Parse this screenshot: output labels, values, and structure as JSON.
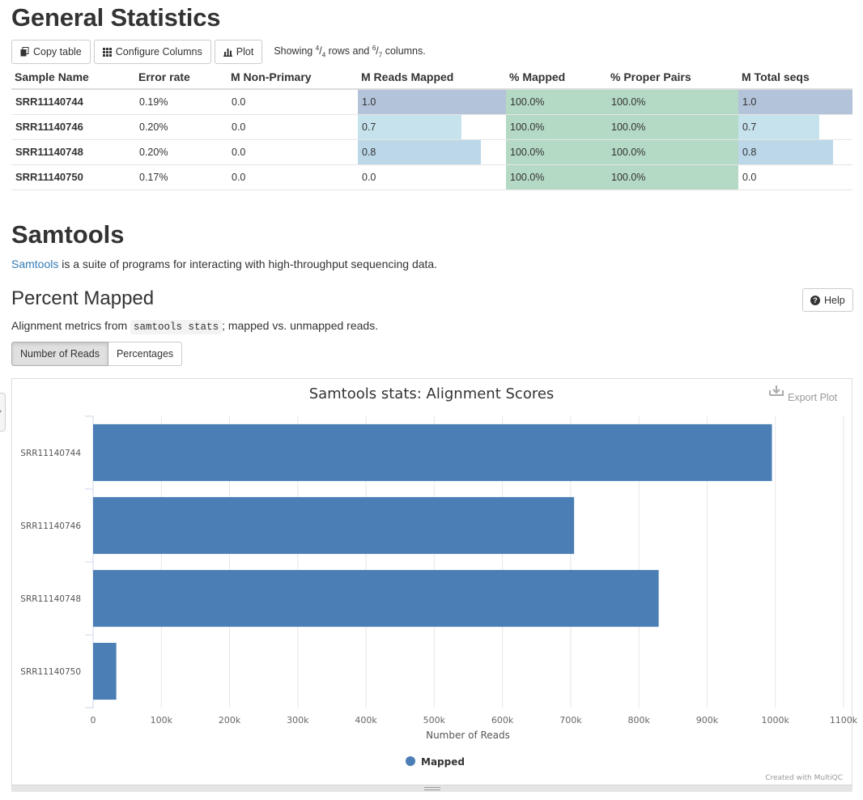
{
  "general_stats": {
    "title": "General Statistics",
    "buttons": {
      "copy": "Copy table",
      "configure": "Configure Columns",
      "plot": "Plot"
    },
    "showing": {
      "prefix": "Showing",
      "rows_num": "4",
      "rows_den": "4",
      "mid": "rows and",
      "cols_num": "6",
      "cols_den": "7",
      "suffix": "columns."
    },
    "columns": [
      "Sample Name",
      "Error rate",
      "M Non-Primary",
      "M Reads Mapped",
      "% Mapped",
      "% Proper Pairs",
      "M Total seqs"
    ],
    "rows": [
      {
        "name": "SRR11140744",
        "error": "0.19%",
        "nonprimary": "0.0",
        "mapped": "1.0",
        "mapped_frac": 1.0,
        "pct_mapped": "100.0%",
        "proper": "100.0%",
        "total": "1.0",
        "total_frac": 1.0
      },
      {
        "name": "SRR11140746",
        "error": "0.20%",
        "nonprimary": "0.0",
        "mapped": "0.7",
        "mapped_frac": 0.7,
        "pct_mapped": "100.0%",
        "proper": "100.0%",
        "total": "0.7",
        "total_frac": 0.71
      },
      {
        "name": "SRR11140748",
        "error": "0.20%",
        "nonprimary": "0.0",
        "mapped": "0.8",
        "mapped_frac": 0.83,
        "pct_mapped": "100.0%",
        "proper": "100.0%",
        "total": "0.8",
        "total_frac": 0.83
      },
      {
        "name": "SRR11140750",
        "error": "0.17%",
        "nonprimary": "0.0",
        "mapped": "0.0",
        "mapped_frac": 0.0,
        "pct_mapped": "100.0%",
        "proper": "100.0%",
        "total": "0.0",
        "total_frac": 0.0
      }
    ],
    "colors": {
      "bar_high": "#b3c3d9",
      "bar_mid": "#bcd7e8",
      "bar_low": "#c6e2ec",
      "green": "#b4d9c4"
    }
  },
  "samtools": {
    "title": "Samtools",
    "link_text": "Samtools",
    "description": "is a suite of programs for interacting with high-throughput sequencing data."
  },
  "percent_mapped": {
    "title": "Percent Mapped",
    "help_label": "Help",
    "desc_prefix": "Alignment metrics from",
    "desc_code": "samtools stats",
    "desc_suffix": "; mapped vs. unmapped reads.",
    "tabs": [
      "Number of Reads",
      "Percentages"
    ],
    "active_tab": "Number of Reads",
    "export_label": "Export Plot",
    "credit": "Created with MultiQC"
  },
  "chart_data": {
    "type": "bar",
    "orientation": "horizontal",
    "title": "Samtools stats: Alignment Scores",
    "xlabel": "Number of Reads",
    "ylabel": "",
    "categories": [
      "SRR11140744",
      "SRR11140746",
      "SRR11140748",
      "SRR11140750"
    ],
    "series": [
      {
        "name": "Mapped",
        "color": "#4a7eb4",
        "values": [
          995000,
          705000,
          829000,
          34000
        ]
      }
    ],
    "xlim": [
      0,
      1100000
    ],
    "xticks": [
      0,
      100000,
      200000,
      300000,
      400000,
      500000,
      600000,
      700000,
      800000,
      900000,
      1000000,
      1100000
    ],
    "xtick_labels": [
      "0",
      "100k",
      "200k",
      "300k",
      "400k",
      "500k",
      "600k",
      "700k",
      "800k",
      "900k",
      "1000k",
      "1100k"
    ],
    "grid": true,
    "legend": "bottom-center"
  }
}
